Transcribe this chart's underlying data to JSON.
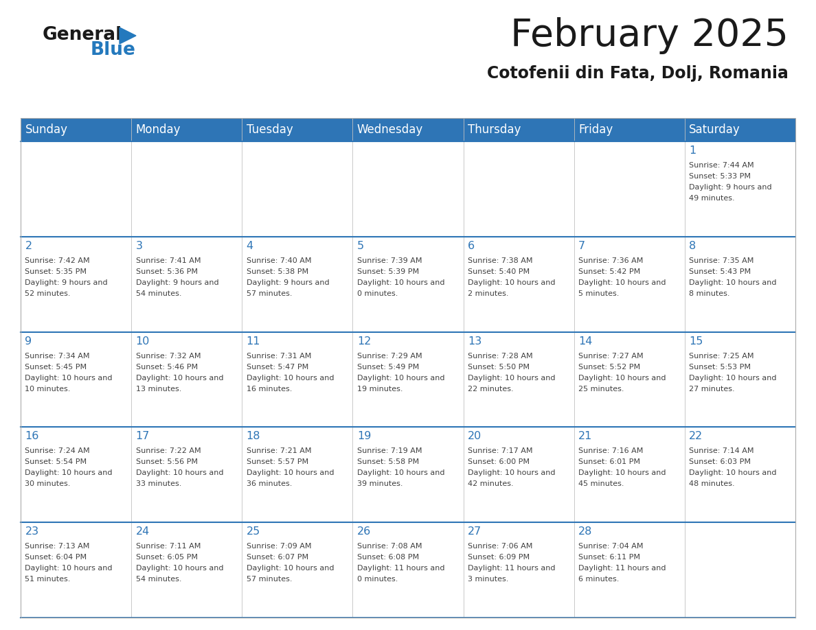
{
  "title": "February 2025",
  "subtitle": "Cotofenii din Fata, Dolj, Romania",
  "header_color": "#2E75B6",
  "header_text_color": "#FFFFFF",
  "day_number_color": "#2E75B6",
  "text_color": "#404040",
  "line_color": "#2E75B6",
  "border_color": "#AAAAAA",
  "days_of_week": [
    "Sunday",
    "Monday",
    "Tuesday",
    "Wednesday",
    "Thursday",
    "Friday",
    "Saturday"
  ],
  "logo_color1": "#1a1a1a",
  "logo_color2": "#2479BD",
  "calendar_data": [
    [
      null,
      null,
      null,
      null,
      null,
      null,
      {
        "day": 1,
        "sunrise": "7:44 AM",
        "sunset": "5:33 PM",
        "daylight": "9 hours and 49 minutes."
      }
    ],
    [
      {
        "day": 2,
        "sunrise": "7:42 AM",
        "sunset": "5:35 PM",
        "daylight": "9 hours and 52 minutes."
      },
      {
        "day": 3,
        "sunrise": "7:41 AM",
        "sunset": "5:36 PM",
        "daylight": "9 hours and 54 minutes."
      },
      {
        "day": 4,
        "sunrise": "7:40 AM",
        "sunset": "5:38 PM",
        "daylight": "9 hours and 57 minutes."
      },
      {
        "day": 5,
        "sunrise": "7:39 AM",
        "sunset": "5:39 PM",
        "daylight": "10 hours and 0 minutes."
      },
      {
        "day": 6,
        "sunrise": "7:38 AM",
        "sunset": "5:40 PM",
        "daylight": "10 hours and 2 minutes."
      },
      {
        "day": 7,
        "sunrise": "7:36 AM",
        "sunset": "5:42 PM",
        "daylight": "10 hours and 5 minutes."
      },
      {
        "day": 8,
        "sunrise": "7:35 AM",
        "sunset": "5:43 PM",
        "daylight": "10 hours and 8 minutes."
      }
    ],
    [
      {
        "day": 9,
        "sunrise": "7:34 AM",
        "sunset": "5:45 PM",
        "daylight": "10 hours and 10 minutes."
      },
      {
        "day": 10,
        "sunrise": "7:32 AM",
        "sunset": "5:46 PM",
        "daylight": "10 hours and 13 minutes."
      },
      {
        "day": 11,
        "sunrise": "7:31 AM",
        "sunset": "5:47 PM",
        "daylight": "10 hours and 16 minutes."
      },
      {
        "day": 12,
        "sunrise": "7:29 AM",
        "sunset": "5:49 PM",
        "daylight": "10 hours and 19 minutes."
      },
      {
        "day": 13,
        "sunrise": "7:28 AM",
        "sunset": "5:50 PM",
        "daylight": "10 hours and 22 minutes."
      },
      {
        "day": 14,
        "sunrise": "7:27 AM",
        "sunset": "5:52 PM",
        "daylight": "10 hours and 25 minutes."
      },
      {
        "day": 15,
        "sunrise": "7:25 AM",
        "sunset": "5:53 PM",
        "daylight": "10 hours and 27 minutes."
      }
    ],
    [
      {
        "day": 16,
        "sunrise": "7:24 AM",
        "sunset": "5:54 PM",
        "daylight": "10 hours and 30 minutes."
      },
      {
        "day": 17,
        "sunrise": "7:22 AM",
        "sunset": "5:56 PM",
        "daylight": "10 hours and 33 minutes."
      },
      {
        "day": 18,
        "sunrise": "7:21 AM",
        "sunset": "5:57 PM",
        "daylight": "10 hours and 36 minutes."
      },
      {
        "day": 19,
        "sunrise": "7:19 AM",
        "sunset": "5:58 PM",
        "daylight": "10 hours and 39 minutes."
      },
      {
        "day": 20,
        "sunrise": "7:17 AM",
        "sunset": "6:00 PM",
        "daylight": "10 hours and 42 minutes."
      },
      {
        "day": 21,
        "sunrise": "7:16 AM",
        "sunset": "6:01 PM",
        "daylight": "10 hours and 45 minutes."
      },
      {
        "day": 22,
        "sunrise": "7:14 AM",
        "sunset": "6:03 PM",
        "daylight": "10 hours and 48 minutes."
      }
    ],
    [
      {
        "day": 23,
        "sunrise": "7:13 AM",
        "sunset": "6:04 PM",
        "daylight": "10 hours and 51 minutes."
      },
      {
        "day": 24,
        "sunrise": "7:11 AM",
        "sunset": "6:05 PM",
        "daylight": "10 hours and 54 minutes."
      },
      {
        "day": 25,
        "sunrise": "7:09 AM",
        "sunset": "6:07 PM",
        "daylight": "10 hours and 57 minutes."
      },
      {
        "day": 26,
        "sunrise": "7:08 AM",
        "sunset": "6:08 PM",
        "daylight": "11 hours and 0 minutes."
      },
      {
        "day": 27,
        "sunrise": "7:06 AM",
        "sunset": "6:09 PM",
        "daylight": "11 hours and 3 minutes."
      },
      {
        "day": 28,
        "sunrise": "7:04 AM",
        "sunset": "6:11 PM",
        "daylight": "11 hours and 6 minutes."
      },
      null
    ]
  ]
}
